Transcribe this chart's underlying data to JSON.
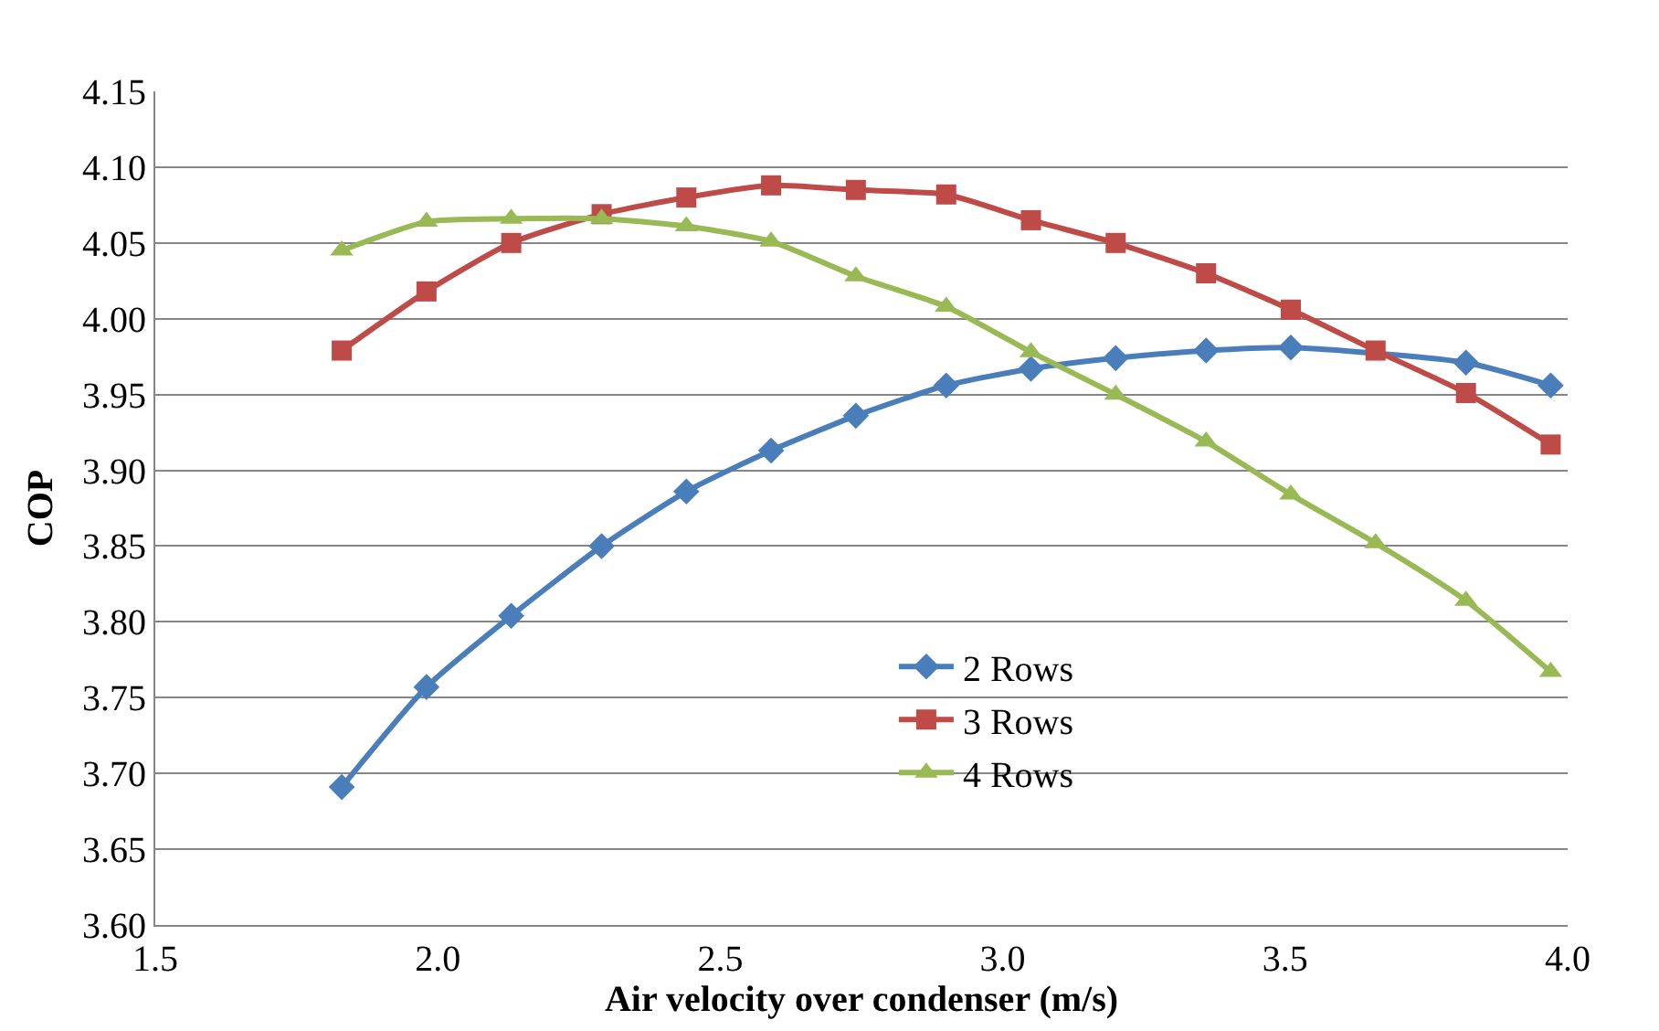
{
  "chart_data": {
    "type": "line",
    "xlabel": "Air velocity over condenser (m/s)",
    "ylabel": "COP",
    "x": [
      1.83,
      1.98,
      2.13,
      2.29,
      2.44,
      2.59,
      2.74,
      2.9,
      3.05,
      3.2,
      3.36,
      3.51,
      3.66,
      3.82,
      3.97
    ],
    "series": [
      {
        "name": "2 Rows",
        "color": "#4a7ebb",
        "marker": "diamond",
        "values": [
          3.691,
          3.757,
          3.804,
          3.85,
          3.886,
          3.913,
          3.936,
          3.956,
          3.967,
          3.974,
          3.979,
          3.981,
          null,
          3.971,
          3.956
        ]
      },
      {
        "name": "3 Rows",
        "color": "#be4b48",
        "marker": "square",
        "values": [
          3.979,
          4.018,
          4.05,
          4.069,
          4.08,
          4.088,
          4.085,
          4.082,
          4.065,
          4.05,
          4.03,
          4.006,
          3.979,
          3.951,
          3.917
        ]
      },
      {
        "name": "4 Rows",
        "color": "#98b954",
        "marker": "triangle",
        "values": [
          4.045,
          4.064,
          4.066,
          4.066,
          4.061,
          4.051,
          4.028,
          4.008,
          3.978,
          3.95,
          3.919,
          3.884,
          3.852,
          3.814,
          3.767
        ]
      }
    ],
    "xlim": [
      1.5,
      4.0
    ],
    "xticks": [
      {
        "value": 1.5,
        "label": "1.5"
      },
      {
        "value": 2.0,
        "label": "2.0"
      },
      {
        "value": 2.5,
        "label": "2.5"
      },
      {
        "value": 3.0,
        "label": "3.0"
      },
      {
        "value": 3.5,
        "label": "3.5"
      },
      {
        "value": 4.0,
        "label": "4.0"
      }
    ],
    "ylim": [
      3.6,
      4.15
    ],
    "yticks": [
      {
        "value": 3.6,
        "label": "3.60"
      },
      {
        "value": 3.65,
        "label": "3.65"
      },
      {
        "value": 3.7,
        "label": "3.70"
      },
      {
        "value": 3.75,
        "label": "3.75"
      },
      {
        "value": 3.8,
        "label": "3.80"
      },
      {
        "value": 3.85,
        "label": "3.85"
      },
      {
        "value": 3.9,
        "label": "3.90"
      },
      {
        "value": 3.95,
        "label": "3.95"
      },
      {
        "value": 4.0,
        "label": "4.00"
      },
      {
        "value": 4.05,
        "label": "4.05"
      },
      {
        "value": 4.1,
        "label": "4.10"
      },
      {
        "value": 4.15,
        "label": "4.15"
      }
    ],
    "grid": "y",
    "legend": "bottom",
    "line_style": "solid"
  }
}
